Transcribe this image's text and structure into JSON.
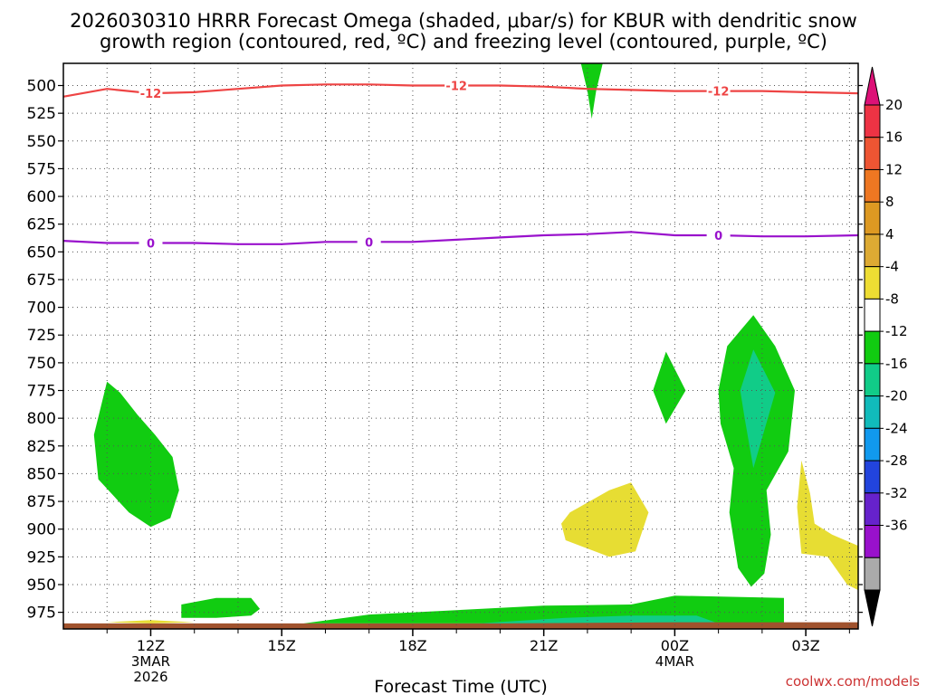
{
  "chart_data": {
    "type": "heatmap",
    "title_line1": "2026030310 HRRR Forecast Omega (shaded, μbar/s) for KBUR with dendritic snow",
    "title_line2": "growth region (contoured, red, ºC) and freezing level (contoured, purple, ºC)",
    "xlabel": "Forecast Time (UTC)",
    "credit": "coolwx.com/models",
    "y_axis": {
      "ticks": [
        500,
        525,
        550,
        575,
        600,
        625,
        650,
        675,
        700,
        725,
        750,
        775,
        800,
        825,
        850,
        875,
        900,
        925,
        950,
        975
      ],
      "range": [
        480,
        990
      ],
      "unit": "hPa"
    },
    "x_axis": {
      "range_hours": [
        -2.0,
        16.2
      ],
      "ticks": [
        {
          "hour": 0,
          "label": "12Z",
          "sub1": "3MAR",
          "sub2": "2026"
        },
        {
          "hour": 3,
          "label": "15Z",
          "sub1": "",
          "sub2": ""
        },
        {
          "hour": 6,
          "label": "18Z",
          "sub1": "",
          "sub2": ""
        },
        {
          "hour": 9,
          "label": "21Z",
          "sub1": "",
          "sub2": ""
        },
        {
          "hour": 12,
          "label": "00Z",
          "sub1": "4MAR",
          "sub2": ""
        },
        {
          "hour": 15,
          "label": "03Z",
          "sub1": "",
          "sub2": ""
        }
      ]
    },
    "colorbar": {
      "labels": [
        "20",
        "16",
        "12",
        "8",
        "4",
        "-4",
        "-8",
        "-12",
        "-16",
        "-20",
        "-24",
        "-28",
        "-32",
        "-36"
      ],
      "colors": [
        "#ee3344",
        "#ee5533",
        "#ee7722",
        "#dd9922",
        "#ddaa33",
        "#eedd33",
        "#ffffff",
        "#11cc11",
        "#11cc88",
        "#11bbbb",
        "#1199ee",
        "#2244dd",
        "#6622cc",
        "#9911cc",
        "#aaaaaa"
      ],
      "top_color": "#dd1177",
      "bottom_color": "#000000"
    },
    "contours": [
      {
        "name": "dgz-minus12",
        "color": "#ee4444",
        "value_label": "-12",
        "label_hours": [
          0,
          7,
          13
        ],
        "points": [
          [
            -2.0,
            510
          ],
          [
            -1.0,
            503
          ],
          [
            0.0,
            507
          ],
          [
            1.0,
            506
          ],
          [
            2.0,
            503
          ],
          [
            3.0,
            500
          ],
          [
            4.0,
            499
          ],
          [
            5.0,
            499
          ],
          [
            6.0,
            500
          ],
          [
            7.0,
            500
          ],
          [
            8.0,
            500
          ],
          [
            9.0,
            501
          ],
          [
            10.0,
            503
          ],
          [
            11.0,
            504
          ],
          [
            12.0,
            505
          ],
          [
            13.0,
            505
          ],
          [
            14.0,
            505
          ],
          [
            15.0,
            506
          ],
          [
            16.2,
            507
          ]
        ]
      },
      {
        "name": "freezing-level-0",
        "color": "#9911cc",
        "value_label": "0",
        "label_hours": [
          0,
          5,
          13
        ],
        "points": [
          [
            -2.0,
            640
          ],
          [
            -1.0,
            642
          ],
          [
            0.0,
            642
          ],
          [
            1.0,
            642
          ],
          [
            2.0,
            643
          ],
          [
            3.0,
            643
          ],
          [
            4.0,
            641
          ],
          [
            5.0,
            641
          ],
          [
            6.0,
            641
          ],
          [
            7.0,
            639
          ],
          [
            8.0,
            637
          ],
          [
            9.0,
            635
          ],
          [
            10.0,
            634
          ],
          [
            11.0,
            632
          ],
          [
            12.0,
            635
          ],
          [
            13.0,
            635
          ],
          [
            14.0,
            636
          ],
          [
            15.0,
            636
          ],
          [
            16.2,
            635
          ]
        ]
      }
    ],
    "shaded_regions": [
      {
        "name": "omega-green-1",
        "color": "#11cc11",
        "points": [
          [
            -1.0,
            767
          ],
          [
            -0.7,
            777
          ],
          [
            -0.3,
            797
          ],
          [
            0.1,
            815
          ],
          [
            0.5,
            835
          ],
          [
            0.65,
            865
          ],
          [
            0.45,
            890
          ],
          [
            0.0,
            898
          ],
          [
            -0.5,
            885
          ],
          [
            -1.2,
            855
          ],
          [
            -1.3,
            815
          ]
        ]
      },
      {
        "name": "omega-green-2",
        "color": "#11cc11",
        "points": [
          [
            9.85,
            480
          ],
          [
            10.35,
            480
          ],
          [
            10.2,
            505
          ],
          [
            10.1,
            530
          ],
          [
            10.0,
            505
          ]
        ]
      },
      {
        "name": "omega-green-3",
        "color": "#11cc11",
        "points": [
          [
            11.8,
            740
          ],
          [
            12.25,
            775
          ],
          [
            11.8,
            805
          ],
          [
            11.5,
            775
          ]
        ]
      },
      {
        "name": "omega-green-4",
        "color": "#11cc11",
        "points": [
          [
            13.8,
            707
          ],
          [
            14.3,
            735
          ],
          [
            14.75,
            775
          ],
          [
            14.6,
            830
          ],
          [
            14.1,
            865
          ],
          [
            14.2,
            905
          ],
          [
            14.05,
            940
          ],
          [
            13.75,
            952
          ],
          [
            13.45,
            935
          ],
          [
            13.25,
            885
          ],
          [
            13.35,
            845
          ],
          [
            13.05,
            805
          ],
          [
            13.0,
            775
          ],
          [
            13.2,
            735
          ]
        ]
      },
      {
        "name": "omega-teal-4",
        "color": "#11cc88",
        "points": [
          [
            13.8,
            738
          ],
          [
            14.3,
            777
          ],
          [
            13.8,
            845
          ],
          [
            13.6,
            800
          ],
          [
            13.5,
            775
          ]
        ]
      },
      {
        "name": "omega-green-5",
        "color": "#11cc11",
        "points": [
          [
            0.7,
            968
          ],
          [
            1.5,
            962
          ],
          [
            2.3,
            962
          ],
          [
            2.5,
            972
          ],
          [
            2.3,
            978
          ],
          [
            1.5,
            980
          ],
          [
            0.7,
            980
          ]
        ]
      },
      {
        "name": "omega-green-6",
        "color": "#11cc11",
        "points": [
          [
            3.5,
            985
          ],
          [
            5.0,
            977
          ],
          [
            7.0,
            973
          ],
          [
            9.0,
            969
          ],
          [
            11.0,
            968
          ],
          [
            12.0,
            960
          ],
          [
            14.5,
            962
          ],
          [
            14.5,
            985
          ]
        ]
      },
      {
        "name": "omega-teal-6",
        "color": "#11cc88",
        "points": [
          [
            7.5,
            985
          ],
          [
            9.5,
            980
          ],
          [
            11.0,
            978
          ],
          [
            12.5,
            978
          ],
          [
            13.0,
            985
          ]
        ]
      },
      {
        "name": "omega-yellow-1",
        "color": "#e7dd33",
        "points": [
          [
            9.6,
            885
          ],
          [
            10.5,
            865
          ],
          [
            11.0,
            858
          ],
          [
            11.4,
            885
          ],
          [
            11.1,
            920
          ],
          [
            10.5,
            925
          ],
          [
            9.5,
            910
          ],
          [
            9.4,
            895
          ]
        ]
      },
      {
        "name": "omega-yellow-2",
        "color": "#e7dd33",
        "points": [
          [
            14.9,
            838
          ],
          [
            15.1,
            868
          ],
          [
            15.2,
            895
          ],
          [
            15.6,
            905
          ],
          [
            16.2,
            915
          ],
          [
            16.2,
            955
          ],
          [
            15.95,
            950
          ],
          [
            15.5,
            925
          ],
          [
            14.9,
            922
          ],
          [
            14.8,
            880
          ]
        ]
      },
      {
        "name": "omega-yellow-3",
        "color": "#e7dd33",
        "points": [
          [
            -1.0,
            984
          ],
          [
            0.0,
            982
          ],
          [
            1.0,
            984
          ],
          [
            0.0,
            985
          ]
        ]
      },
      {
        "name": "terrain-surface",
        "color": "#a0522d",
        "points": [
          [
            -2.0,
            985
          ],
          [
            4.0,
            985
          ],
          [
            8.0,
            985
          ],
          [
            12.0,
            984
          ],
          [
            16.2,
            984
          ],
          [
            16.2,
            990
          ],
          [
            -2.0,
            990
          ]
        ]
      }
    ]
  }
}
